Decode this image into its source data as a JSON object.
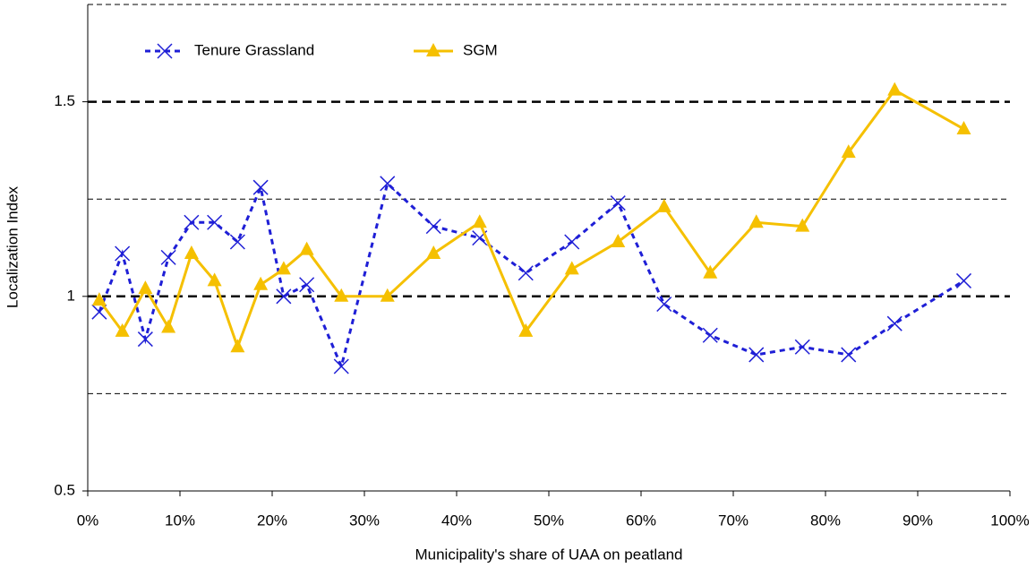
{
  "chart_data": {
    "type": "line",
    "x_label": "Municipality's share of UAA on peatland",
    "y_label": "Localization Index",
    "x": [
      1.25,
      3.75,
      6.25,
      8.75,
      11.25,
      13.75,
      16.25,
      18.75,
      21.25,
      23.75,
      27.5,
      32.5,
      37.5,
      42.5,
      47.5,
      52.5,
      57.5,
      62.5,
      67.5,
      72.5,
      77.5,
      82.5,
      87.5,
      95
    ],
    "series": [
      {
        "name": "Tenure Grassland",
        "color": "#1f1fd6",
        "dash": true,
        "marker": "x",
        "values": [
          0.96,
          1.11,
          0.89,
          1.1,
          1.19,
          1.19,
          1.14,
          1.28,
          1.0,
          1.03,
          0.82,
          1.29,
          1.18,
          1.15,
          1.06,
          1.14,
          1.24,
          0.98,
          0.9,
          0.85,
          0.87,
          0.85,
          0.93,
          1.04
        ]
      },
      {
        "name": "SGM",
        "color": "#f5c000",
        "dash": false,
        "marker": "triangle",
        "values": [
          0.99,
          0.91,
          1.02,
          0.92,
          1.11,
          1.04,
          0.87,
          1.03,
          1.07,
          1.12,
          1.0,
          1.0,
          1.11,
          1.19,
          0.91,
          1.07,
          1.14,
          1.23,
          1.06,
          1.19,
          1.18,
          1.37,
          1.53,
          1.43
        ]
      }
    ],
    "xlim": [
      0,
      100
    ],
    "xticks": [
      {
        "value": 0,
        "label": "0%"
      },
      {
        "value": 10,
        "label": "10%"
      },
      {
        "value": 20,
        "label": "20%"
      },
      {
        "value": 30,
        "label": "30%"
      },
      {
        "value": 40,
        "label": "40%"
      },
      {
        "value": 50,
        "label": "50%"
      },
      {
        "value": 60,
        "label": "60%"
      },
      {
        "value": 70,
        "label": "70%"
      },
      {
        "value": 80,
        "label": "80%"
      },
      {
        "value": 90,
        "label": "90%"
      },
      {
        "value": 100,
        "label": "100%"
      }
    ],
    "ylim": [
      0.5,
      1.75
    ],
    "yticks": [
      0.5,
      1,
      1.5
    ],
    "major_grid": [
      1,
      1.5
    ],
    "minor_grid": [
      0.75,
      1.25,
      1.75
    ],
    "legend": "top-left"
  }
}
